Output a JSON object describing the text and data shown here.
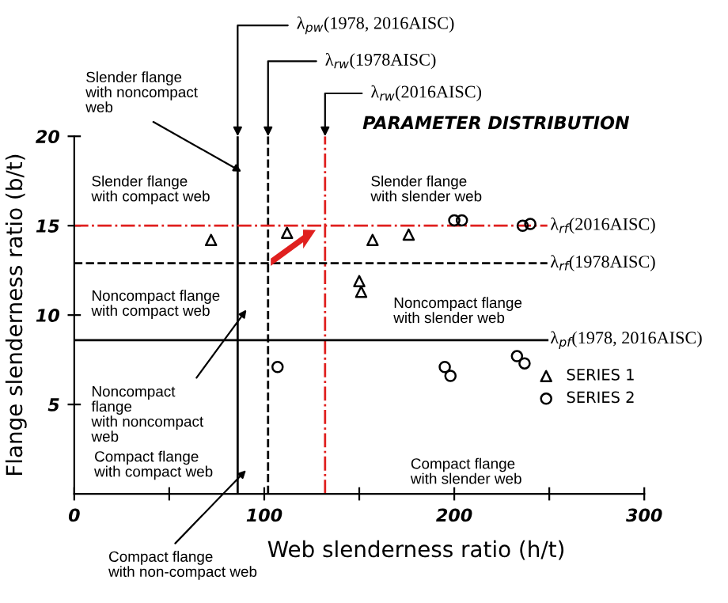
{
  "chart_data": {
    "type": "scatter",
    "title": "PARAMETER DISTRIBUTION",
    "xlabel": "Web slenderness ratio (h/t)",
    "ylabel": "Flange slenderness ratio (b/t)",
    "series": [
      {
        "name": "SERIES 1",
        "color": "#000000",
        "marker": "triangle",
        "x": [
          72,
          112,
          157,
          176,
          150,
          151
        ],
        "values": [
          14.2,
          14.6,
          14.2,
          14.5,
          11.9,
          11.3
        ]
      },
      {
        "name": "SERIES 2",
        "color": "#000000",
        "marker": "circle",
        "x": [
          200,
          204,
          236,
          240,
          107,
          195,
          198,
          233,
          237
        ],
        "values": [
          15.3,
          15.3,
          15.0,
          15.1,
          7.1,
          7.1,
          6.6,
          7.7,
          7.3
        ]
      }
    ],
    "xlim": [
      0,
      300
    ],
    "ylim": [
      0,
      20
    ],
    "xticks": [
      0,
      {
        "value": 50,
        "label": null
      },
      100,
      {
        "value": 150,
        "label": null
      },
      200,
      {
        "value": 250,
        "label": null
      },
      300
    ],
    "yticks": [
      5,
      10,
      15,
      20
    ],
    "ref_lines": [
      {
        "axis": "x",
        "value": 86,
        "label": "λ$_{pw}$(1978, 2016AISC)",
        "color": "#000000",
        "line_style": "solid"
      },
      {
        "axis": "x",
        "value": 102,
        "label": "λ$_{rw}$(1978AISC)",
        "color": "#000000",
        "line_style": "dashed"
      },
      {
        "axis": "x",
        "value": 132,
        "label": "λ$_{rw}$(2016AISC)",
        "color": "#e0201f",
        "line_style": "dashdot"
      },
      {
        "axis": "y",
        "value": 15,
        "label": "λ$_{rf}$(2016AISC)",
        "color": "#e0201f",
        "line_style": "dashdot"
      },
      {
        "axis": "y",
        "value": 12.9,
        "label": "λ$_{rf}$(1978AISC)",
        "color": "#000000",
        "line_style": "dashed"
      },
      {
        "axis": "y",
        "value": 8.6,
        "label": "λ$_{pf}$(1978, 2016AISC)",
        "color": "#000000",
        "line_style": "solid"
      }
    ],
    "annotations": [
      "Slender flange\nwith noncompact\nweb",
      "Slender flange\nwith compact web",
      "Noncompact flange\nwith compact web",
      "Noncompact\nflange\nwith noncompact\nweb",
      "Compact flange\nwith compact web",
      "Compact flange\nwith non-compact web",
      "Slender flange\nwith slender web",
      "Noncompact flange\nwith slender web",
      "Compact flange\nwith slender web"
    ],
    "grid": false,
    "legend": "bottom right"
  }
}
